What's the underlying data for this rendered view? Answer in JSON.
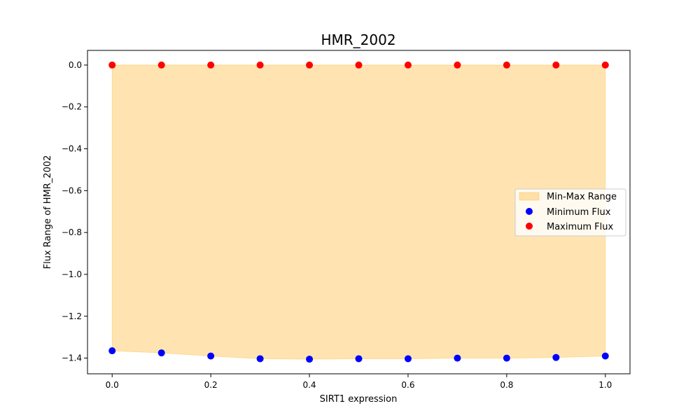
{
  "chart_data": {
    "type": "scatter",
    "title": "HMR_2002",
    "xlabel": "SIRT1 expression",
    "ylabel": "Flux Range of HMR_2002",
    "xlim": [
      -0.05,
      1.05
    ],
    "ylim": [
      -1.475,
      0.07
    ],
    "xticks": [
      0.0,
      0.2,
      0.4,
      0.6,
      0.8,
      1.0
    ],
    "xtick_labels": [
      "0.0",
      "0.2",
      "0.4",
      "0.6",
      "0.8",
      "1.0"
    ],
    "yticks": [
      0.0,
      -0.2,
      -0.4,
      -0.6,
      -0.8,
      -1.0,
      -1.2,
      -1.4
    ],
    "ytick_labels": [
      "0.0",
      "−0.2",
      "−0.4",
      "−0.6",
      "−0.8",
      "−1.0",
      "−1.2",
      "−1.4"
    ],
    "x": [
      0.0,
      0.1,
      0.2,
      0.3,
      0.4,
      0.5,
      0.6,
      0.7,
      0.8,
      0.9,
      1.0
    ],
    "series": [
      {
        "name": "Minimum Flux",
        "color": "#0000ff",
        "values": [
          -1.365,
          -1.375,
          -1.39,
          -1.403,
          -1.405,
          -1.403,
          -1.403,
          -1.4,
          -1.4,
          -1.397,
          -1.39
        ]
      },
      {
        "name": "Maximum Flux",
        "color": "#ff0000",
        "values": [
          0.0,
          0.0,
          0.0,
          0.0,
          0.0,
          0.0,
          0.0,
          0.0,
          0.0,
          0.0,
          0.0
        ]
      }
    ],
    "fill": {
      "name": "Min-Max Range",
      "color": "#ffa500",
      "alpha": 0.3
    },
    "grid": false,
    "legend_position": "center-right",
    "legend": [
      "Min-Max Range",
      "Minimum Flux",
      "Maximum Flux"
    ]
  }
}
